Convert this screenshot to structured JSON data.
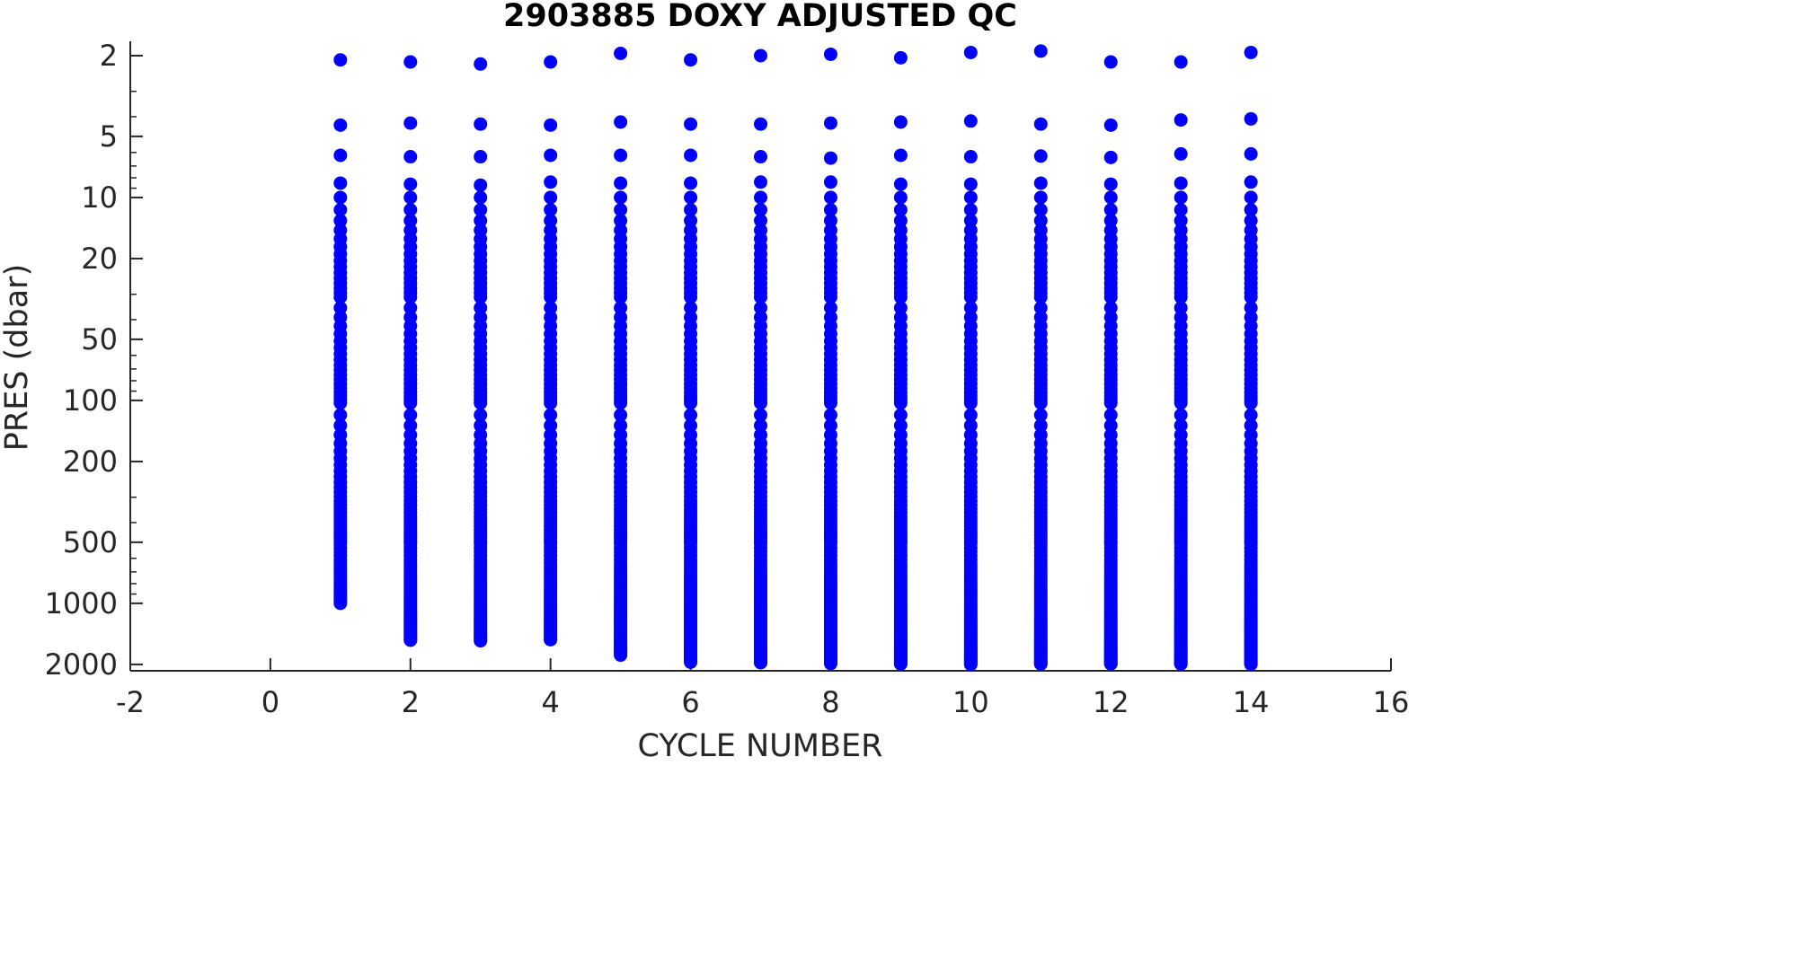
{
  "chart_data": {
    "type": "scatter",
    "title": "2903885  DOXY ADJUSTED QC",
    "xlabel": "CYCLE NUMBER",
    "ylabel": "PRES (dbar)",
    "xlim": [
      -2,
      16
    ],
    "xticks": [
      -2,
      0,
      2,
      4,
      6,
      8,
      10,
      12,
      14,
      16
    ],
    "ylim": [
      1.7,
      2150
    ],
    "yscale": "log",
    "yreversed": true,
    "yticks": [
      2,
      5,
      10,
      20,
      50,
      100,
      200,
      500,
      1000,
      2000
    ],
    "grid": false,
    "marker_color": "#0000ff",
    "axis_color": "#262626",
    "series": [
      {
        "x": 1,
        "top_points": [
          2.1,
          4.4,
          6.2,
          8.5
        ],
        "max_pres": 1000
      },
      {
        "x": 2,
        "top_points": [
          2.15,
          4.3,
          6.3,
          8.6
        ],
        "max_pres": 1520
      },
      {
        "x": 3,
        "top_points": [
          2.2,
          4.35,
          6.3,
          8.7
        ],
        "max_pres": 1530
      },
      {
        "x": 4,
        "top_points": [
          2.15,
          4.4,
          6.2,
          8.4
        ],
        "max_pres": 1510
      },
      {
        "x": 5,
        "top_points": [
          1.95,
          4.25,
          6.2,
          8.5
        ],
        "max_pres": 1800
      },
      {
        "x": 6,
        "top_points": [
          2.1,
          4.35,
          6.2,
          8.5
        ],
        "max_pres": 1950
      },
      {
        "x": 7,
        "top_points": [
          2.0,
          4.35,
          6.3,
          8.4
        ],
        "max_pres": 1960
      },
      {
        "x": 8,
        "top_points": [
          1.97,
          4.3,
          6.4,
          8.4
        ],
        "max_pres": 1980
      },
      {
        "x": 9,
        "top_points": [
          2.05,
          4.25,
          6.2,
          8.6
        ],
        "max_pres": 1990
      },
      {
        "x": 10,
        "top_points": [
          1.93,
          4.2,
          6.3,
          8.6
        ],
        "max_pres": 2000
      },
      {
        "x": 11,
        "top_points": [
          1.9,
          4.35,
          6.25,
          8.5
        ],
        "max_pres": 1990
      },
      {
        "x": 12,
        "top_points": [
          2.15,
          4.4,
          6.35,
          8.6
        ],
        "max_pres": 1985
      },
      {
        "x": 13,
        "top_points": [
          2.15,
          4.15,
          6.1,
          8.5
        ],
        "max_pres": 1990
      },
      {
        "x": 14,
        "top_points": [
          1.93,
          4.1,
          6.1,
          8.4
        ],
        "max_pres": 1995
      }
    ]
  }
}
